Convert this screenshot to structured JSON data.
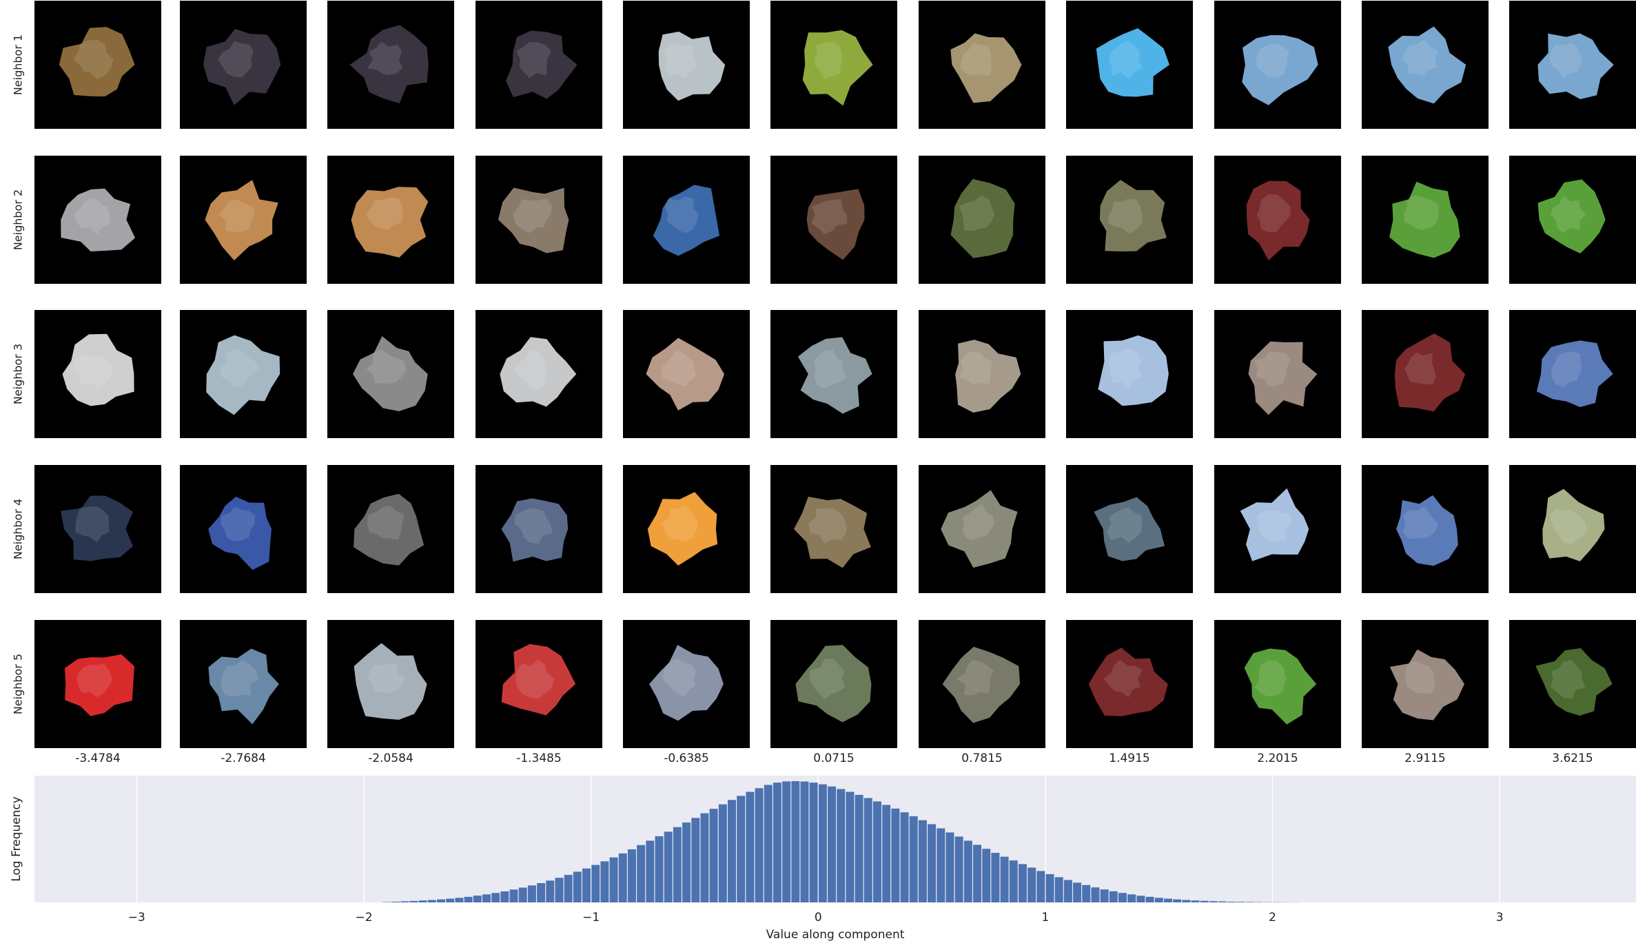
{
  "row_labels": [
    "Neighbor 1",
    "Neighbor 2",
    "Neighbor 3",
    "Neighbor 4",
    "Neighbor 5"
  ],
  "column_values": [
    "-3.4784",
    "-2.7684",
    "-2.0584",
    "-1.3485",
    "-0.6385",
    "0.0715",
    "0.7815",
    "1.4915",
    "2.2015",
    "2.9115",
    "3.6215"
  ],
  "tiles": [
    [
      "#8a6a3a",
      "#3a3440",
      "#3a3440",
      "#3a3440",
      "#b9c2c6",
      "#8eaa3c",
      "#a69570",
      "#4fb3e8",
      "#7aa7cf",
      "#7aa7cf",
      "#7aa7cf"
    ],
    [
      "#a4a4a8",
      "#c18a52",
      "#c18a52",
      "#8a7a6a",
      "#3a68a8",
      "#6a4a3a",
      "#5a6a3a",
      "#7a7a5a",
      "#7a2a2a",
      "#5aa03a",
      "#5aa03a"
    ],
    [
      "#cfcfcf",
      "#a6b8c4",
      "#8a8a8a",
      "#c6c8ca",
      "#b89a88",
      "#8a9aa0",
      "#a69a8a",
      "#a8c0e0",
      "#9a8a80",
      "#7a2a2a",
      "#5a7ab8"
    ],
    [
      "#2a3650",
      "#3a58a8",
      "#6a6a6a",
      "#5a6a8a",
      "#f0a03a",
      "#8a7a5a",
      "#8a8a7a",
      "#5a7080",
      "#a8c0e0",
      "#5a7ab8",
      "#a8b088"
    ],
    [
      "#d82a2a",
      "#6a88a8",
      "#a6b0b8",
      "#c83a3a",
      "#8a94a8",
      "#6a7a5a",
      "#7a7a6a",
      "#7a2a2a",
      "#5aa03a",
      "#9a8a80",
      "#4a6a30"
    ]
  ],
  "chart_data": {
    "type": "bar",
    "xlabel": "Value along component",
    "ylabel": "Log Frequency",
    "xlim": [
      -3.45,
      3.6
    ],
    "xticks": [
      -3,
      -2,
      -1,
      0,
      1,
      2,
      3
    ],
    "grid": true,
    "legend": "none",
    "bar_color": "#4c72b0",
    "background": "#eaeaf2",
    "bin_width": 0.04,
    "x": [
      -1.9,
      -1.86,
      -1.82,
      -1.78,
      -1.74,
      -1.7,
      -1.66,
      -1.62,
      -1.58,
      -1.54,
      -1.5,
      -1.46,
      -1.42,
      -1.38,
      -1.34,
      -1.3,
      -1.26,
      -1.22,
      -1.18,
      -1.14,
      -1.1,
      -1.06,
      -1.02,
      -0.98,
      -0.94,
      -0.9,
      -0.86,
      -0.82,
      -0.78,
      -0.74,
      -0.7,
      -0.66,
      -0.62,
      -0.58,
      -0.54,
      -0.5,
      -0.46,
      -0.42,
      -0.38,
      -0.34,
      -0.3,
      -0.26,
      -0.22,
      -0.18,
      -0.14,
      -0.1,
      -0.06,
      -0.02,
      0.02,
      0.06,
      0.1,
      0.14,
      0.18,
      0.22,
      0.26,
      0.3,
      0.34,
      0.38,
      0.42,
      0.46,
      0.5,
      0.54,
      0.58,
      0.62,
      0.66,
      0.7,
      0.74,
      0.78,
      0.82,
      0.86,
      0.9,
      0.94,
      0.98,
      1.02,
      1.06,
      1.1,
      1.14,
      1.18,
      1.22,
      1.26,
      1.3,
      1.34,
      1.38,
      1.42,
      1.46,
      1.5,
      1.54,
      1.58,
      1.62,
      1.66,
      1.7,
      1.74,
      1.78,
      1.82,
      1.86,
      1.9,
      1.94,
      1.98,
      2.02,
      2.06,
      2.1
    ],
    "values": [
      0.003,
      0.006,
      0.009,
      0.012,
      0.016,
      0.02,
      0.025,
      0.031,
      0.038,
      0.046,
      0.056,
      0.066,
      0.078,
      0.091,
      0.106,
      0.122,
      0.14,
      0.159,
      0.18,
      0.203,
      0.227,
      0.253,
      0.28,
      0.309,
      0.339,
      0.371,
      0.404,
      0.438,
      0.473,
      0.509,
      0.546,
      0.583,
      0.621,
      0.659,
      0.697,
      0.735,
      0.772,
      0.809,
      0.845,
      0.879,
      0.912,
      0.942,
      0.969,
      0.988,
      0.998,
      1.0,
      0.997,
      0.988,
      0.974,
      0.956,
      0.935,
      0.912,
      0.887,
      0.861,
      0.833,
      0.804,
      0.774,
      0.743,
      0.711,
      0.678,
      0.645,
      0.611,
      0.577,
      0.543,
      0.509,
      0.475,
      0.442,
      0.409,
      0.377,
      0.346,
      0.316,
      0.287,
      0.259,
      0.233,
      0.208,
      0.185,
      0.163,
      0.143,
      0.124,
      0.107,
      0.092,
      0.078,
      0.066,
      0.055,
      0.046,
      0.038,
      0.031,
      0.025,
      0.02,
      0.016,
      0.013,
      0.01,
      0.008,
      0.006,
      0.005,
      0.004,
      0.003,
      0.002,
      0.002,
      0.001,
      0.001
    ]
  }
}
